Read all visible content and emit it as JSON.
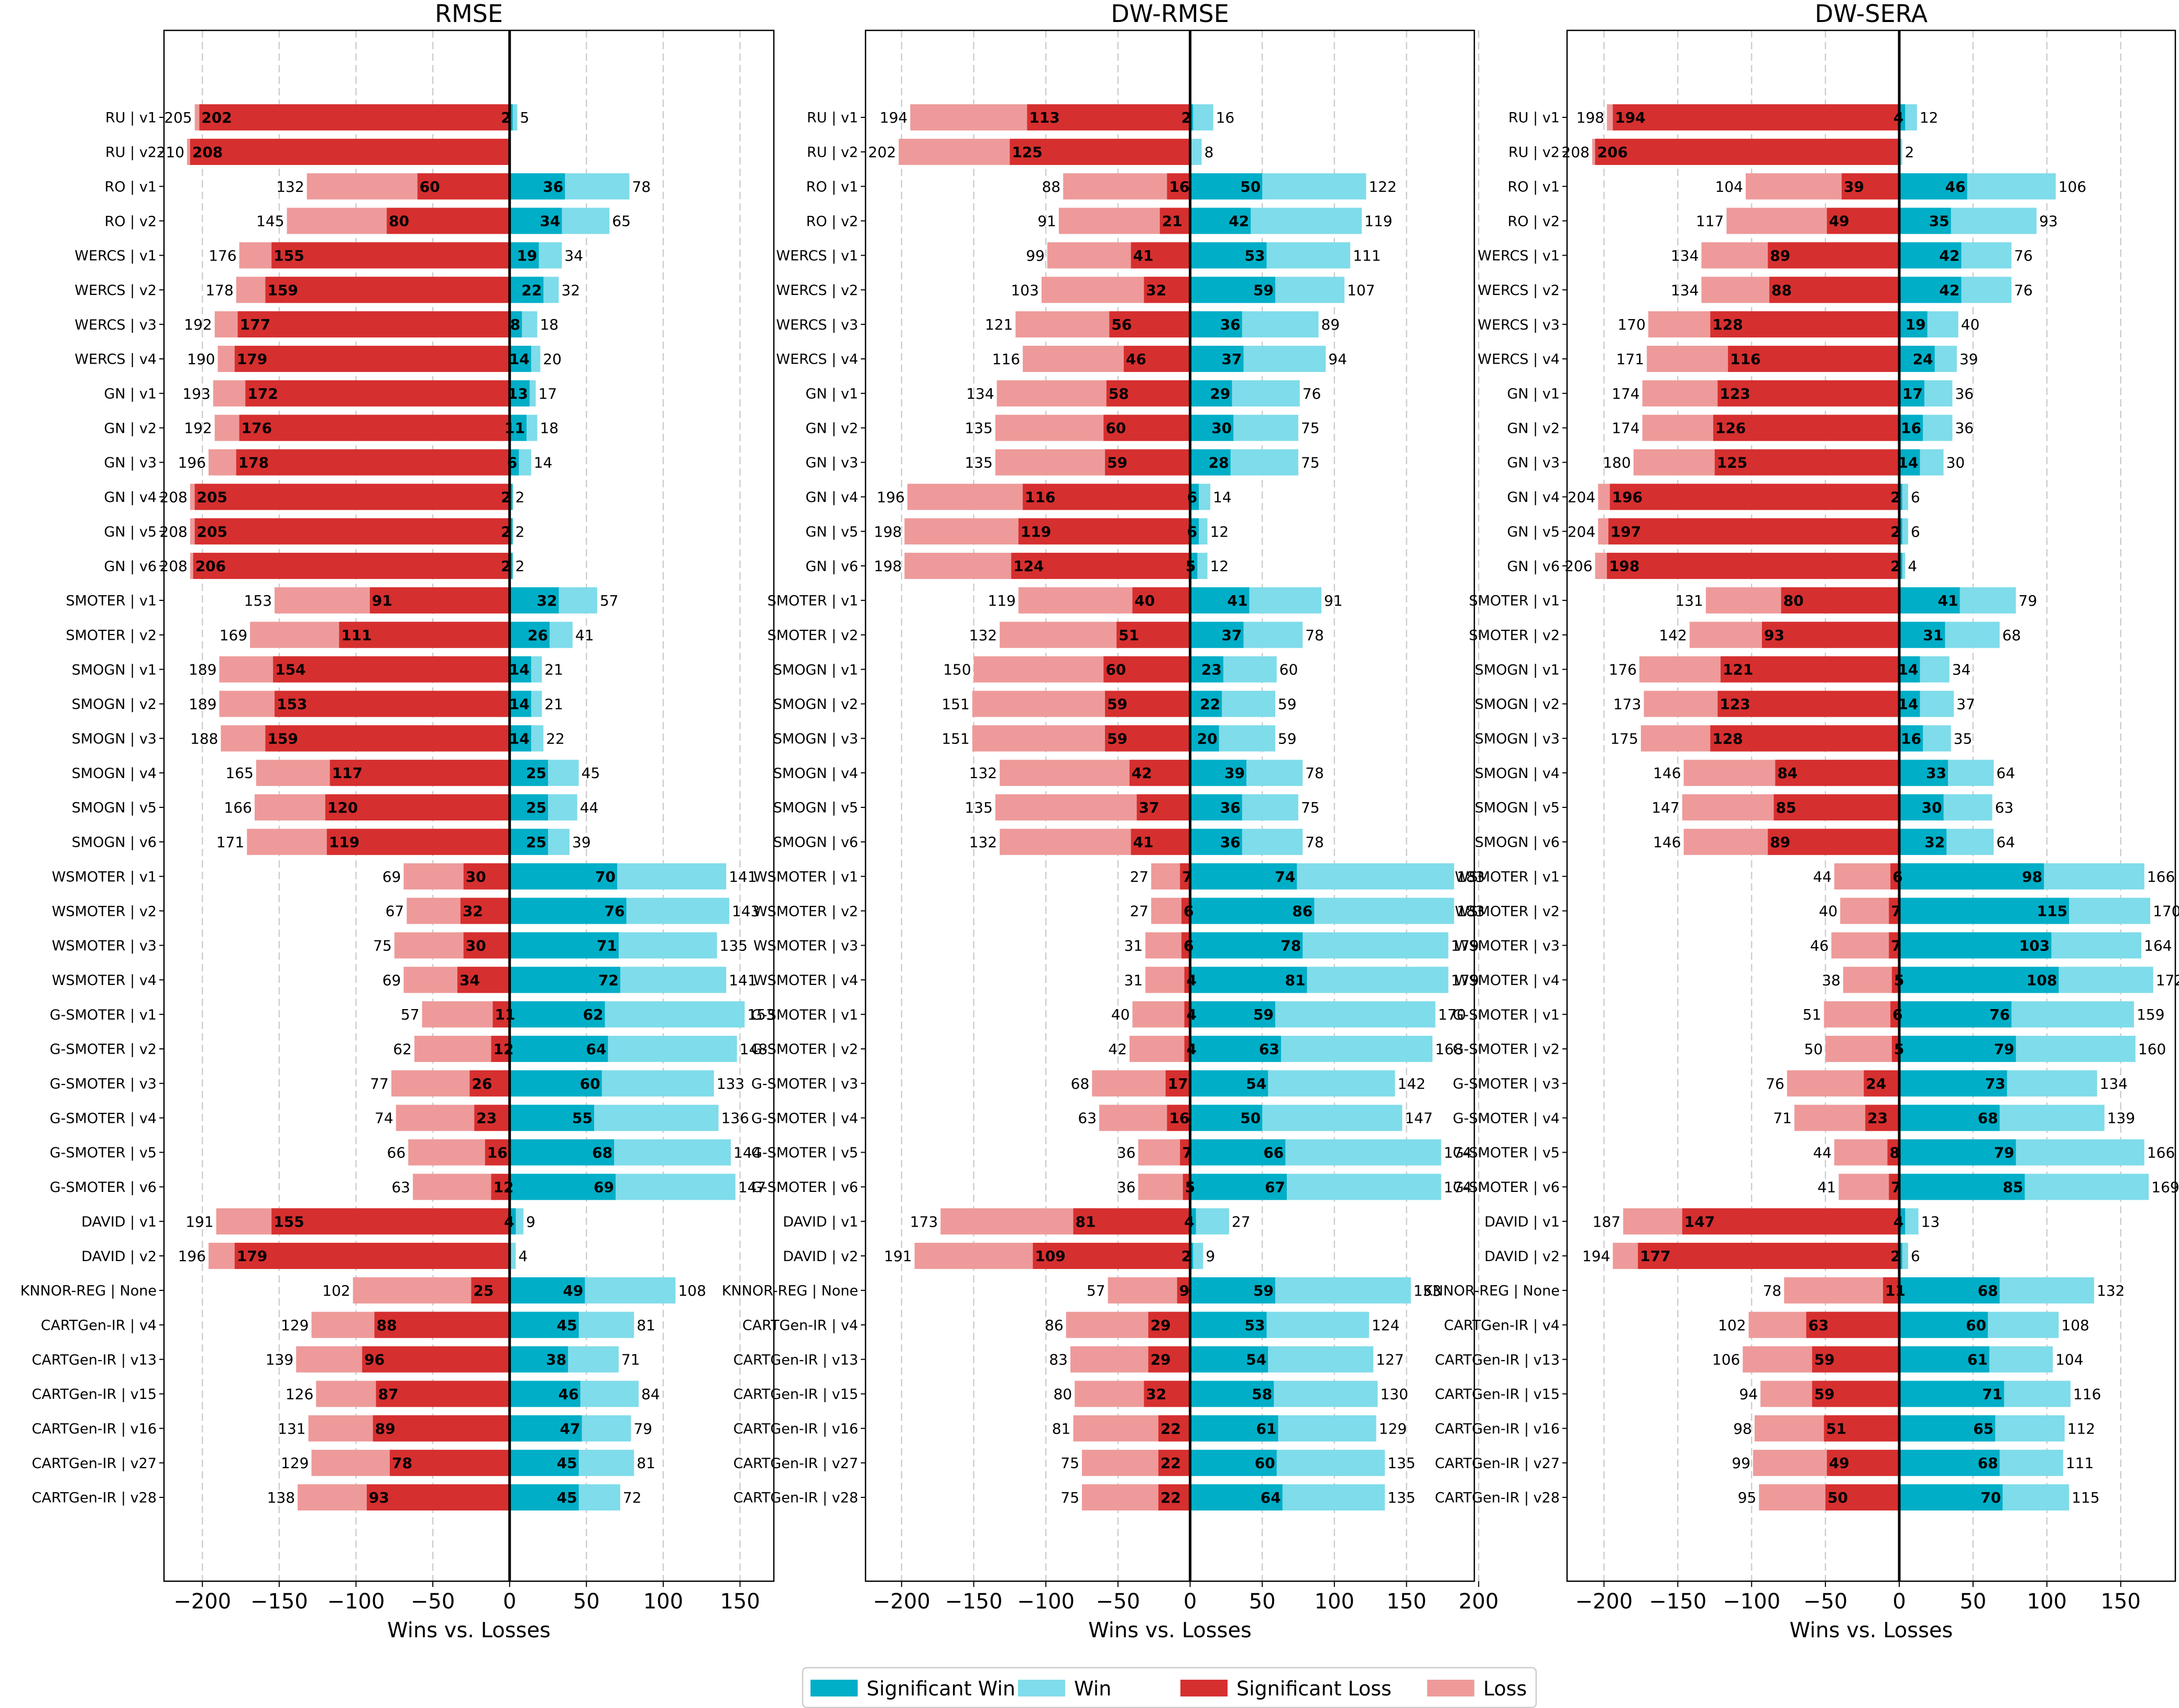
{
  "figure": {
    "legend": [
      {
        "key": "sig_win",
        "label": "Significant Win",
        "color": "#00aec7"
      },
      {
        "key": "win",
        "label": "Win",
        "color": "#7fdcea"
      },
      {
        "key": "sig_loss",
        "label": "Significant Loss",
        "color": "#d62f2f"
      },
      {
        "key": "loss",
        "label": "Loss",
        "color": "#ee9a9a"
      }
    ],
    "legend_placement": "bottom-center"
  },
  "chart_data": [
    {
      "type": "bar",
      "title": "RMSE",
      "xlabel": "Wins vs. Losses",
      "xlim": [
        -225,
        172
      ],
      "xticks": [
        -200,
        -150,
        -100,
        -50,
        0,
        50,
        100,
        150
      ],
      "xtick_labels": [
        "−200",
        "−150",
        "−100",
        "−50",
        "0",
        "50",
        "100",
        "150"
      ],
      "grid": "vertical dashed",
      "categories": [
        "RU | v1",
        "RU | v2",
        "RO | v1",
        "RO | v2",
        "WERCS | v1",
        "WERCS | v2",
        "WERCS | v3",
        "WERCS | v4",
        "GN | v1",
        "GN | v2",
        "GN | v3",
        "GN | v4",
        "GN | v5",
        "GN | v6",
        "SMOTER | v1",
        "SMOTER | v2",
        "SMOGN | v1",
        "SMOGN | v2",
        "SMOGN | v3",
        "SMOGN | v4",
        "SMOGN | v5",
        "SMOGN | v6",
        "WSMOTER | v1",
        "WSMOTER | v2",
        "WSMOTER | v3",
        "WSMOTER | v4",
        "G-SMOTER | v1",
        "G-SMOTER | v2",
        "G-SMOTER | v3",
        "G-SMOTER | v4",
        "G-SMOTER | v5",
        "G-SMOTER | v6",
        "DAVID | v1",
        "DAVID | v2",
        "KNNOR-REG | None",
        "CARTGen-IR | v4",
        "CARTGen-IR | v13",
        "CARTGen-IR | v15",
        "CARTGen-IR | v16",
        "CARTGen-IR | v27",
        "CARTGen-IR | v28"
      ],
      "loss": [
        205,
        210,
        132,
        145,
        176,
        178,
        192,
        190,
        193,
        192,
        196,
        208,
        208,
        208,
        153,
        169,
        189,
        189,
        188,
        165,
        166,
        171,
        69,
        67,
        75,
        69,
        57,
        62,
        77,
        74,
        66,
        63,
        191,
        196,
        102,
        129,
        139,
        126,
        131,
        129,
        138
      ],
      "sig_loss": [
        202,
        208,
        60,
        80,
        155,
        159,
        177,
        179,
        172,
        176,
        178,
        205,
        205,
        206,
        91,
        111,
        154,
        153,
        159,
        117,
        120,
        119,
        30,
        32,
        30,
        34,
        11,
        12,
        26,
        23,
        16,
        12,
        155,
        179,
        25,
        88,
        96,
        87,
        89,
        78,
        93
      ],
      "win": [
        5,
        0,
        78,
        65,
        34,
        32,
        18,
        20,
        17,
        18,
        14,
        2,
        2,
        2,
        57,
        41,
        21,
        21,
        22,
        45,
        44,
        39,
        141,
        143,
        135,
        141,
        153,
        148,
        133,
        136,
        144,
        147,
        9,
        4,
        108,
        81,
        71,
        84,
        79,
        81,
        72
      ],
      "sig_win": [
        2,
        0,
        36,
        34,
        19,
        22,
        8,
        14,
        13,
        11,
        6,
        2,
        2,
        2,
        32,
        26,
        14,
        14,
        14,
        25,
        25,
        25,
        70,
        76,
        71,
        72,
        62,
        64,
        60,
        55,
        68,
        69,
        4,
        0,
        49,
        45,
        38,
        46,
        47,
        45,
        45
      ]
    },
    {
      "type": "bar",
      "title": "DW-RMSE",
      "xlabel": "Wins vs. Losses",
      "xlim": [
        -225,
        197
      ],
      "xticks": [
        -200,
        -150,
        -100,
        -50,
        0,
        50,
        100,
        150,
        200
      ],
      "xtick_labels": [
        "−200",
        "−150",
        "−100",
        "−50",
        "0",
        "50",
        "100",
        "150",
        "200"
      ],
      "grid": "vertical dashed",
      "categories": [
        "RU | v1",
        "RU | v2",
        "RO | v1",
        "RO | v2",
        "WERCS | v1",
        "WERCS | v2",
        "WERCS | v3",
        "WERCS | v4",
        "GN | v1",
        "GN | v2",
        "GN | v3",
        "GN | v4",
        "GN | v5",
        "GN | v6",
        "SMOTER | v1",
        "SMOTER | v2",
        "SMOGN | v1",
        "SMOGN | v2",
        "SMOGN | v3",
        "SMOGN | v4",
        "SMOGN | v5",
        "SMOGN | v6",
        "WSMOTER | v1",
        "WSMOTER | v2",
        "WSMOTER | v3",
        "WSMOTER | v4",
        "G-SMOTER | v1",
        "G-SMOTER | v2",
        "G-SMOTER | v3",
        "G-SMOTER | v4",
        "G-SMOTER | v5",
        "G-SMOTER | v6",
        "DAVID | v1",
        "DAVID | v2",
        "KNNOR-REG | None",
        "CARTGen-IR | v4",
        "CARTGen-IR | v13",
        "CARTGen-IR | v15",
        "CARTGen-IR | v16",
        "CARTGen-IR | v27",
        "CARTGen-IR | v28"
      ],
      "loss": [
        194,
        202,
        88,
        91,
        99,
        103,
        121,
        116,
        134,
        135,
        135,
        196,
        198,
        198,
        119,
        132,
        150,
        151,
        151,
        132,
        135,
        132,
        27,
        27,
        31,
        31,
        40,
        42,
        68,
        63,
        36,
        36,
        173,
        191,
        57,
        86,
        83,
        80,
        81,
        75,
        75
      ],
      "sig_loss": [
        113,
        125,
        16,
        21,
        41,
        32,
        56,
        46,
        58,
        60,
        59,
        116,
        119,
        124,
        40,
        51,
        60,
        59,
        59,
        42,
        37,
        41,
        7,
        6,
        6,
        4,
        4,
        4,
        17,
        16,
        7,
        5,
        81,
        109,
        9,
        29,
        29,
        32,
        22,
        22,
        22
      ],
      "win": [
        16,
        8,
        122,
        119,
        111,
        107,
        89,
        94,
        76,
        75,
        75,
        14,
        12,
        12,
        91,
        78,
        60,
        59,
        59,
        78,
        75,
        78,
        183,
        183,
        179,
        179,
        170,
        168,
        142,
        147,
        174,
        174,
        27,
        9,
        153,
        124,
        127,
        130,
        129,
        135,
        135
      ],
      "sig_win": [
        2,
        0,
        50,
        42,
        53,
        59,
        36,
        37,
        29,
        30,
        28,
        6,
        6,
        5,
        41,
        37,
        23,
        22,
        20,
        39,
        36,
        36,
        74,
        86,
        78,
        81,
        59,
        63,
        54,
        50,
        66,
        67,
        4,
        2,
        59,
        53,
        54,
        58,
        61,
        60,
        64
      ]
    },
    {
      "type": "bar",
      "title": "DW-SERA",
      "xlabel": "Wins vs. Losses",
      "xlim": [
        -225,
        187
      ],
      "xticks": [
        -200,
        -150,
        -100,
        -50,
        0,
        50,
        100,
        150
      ],
      "xtick_labels": [
        "−200",
        "−150",
        "−100",
        "−50",
        "0",
        "50",
        "100",
        "150"
      ],
      "grid": "vertical dashed",
      "categories": [
        "RU | v1",
        "RU | v2",
        "RO | v1",
        "RO | v2",
        "WERCS | v1",
        "WERCS | v2",
        "WERCS | v3",
        "WERCS | v4",
        "GN | v1",
        "GN | v2",
        "GN | v3",
        "GN | v4",
        "GN | v5",
        "GN | v6",
        "SMOTER | v1",
        "SMOTER | v2",
        "SMOGN | v1",
        "SMOGN | v2",
        "SMOGN | v3",
        "SMOGN | v4",
        "SMOGN | v5",
        "SMOGN | v6",
        "WSMOTER | v1",
        "WSMOTER | v2",
        "WSMOTER | v3",
        "WSMOTER | v4",
        "G-SMOTER | v1",
        "G-SMOTER | v2",
        "G-SMOTER | v3",
        "G-SMOTER | v4",
        "G-SMOTER | v5",
        "G-SMOTER | v6",
        "DAVID | v1",
        "DAVID | v2",
        "KNNOR-REG | None",
        "CARTGen-IR | v4",
        "CARTGen-IR | v13",
        "CARTGen-IR | v15",
        "CARTGen-IR | v16",
        "CARTGen-IR | v27",
        "CARTGen-IR | v28"
      ],
      "loss": [
        198,
        208,
        104,
        117,
        134,
        134,
        170,
        171,
        174,
        174,
        180,
        204,
        204,
        206,
        131,
        142,
        176,
        173,
        175,
        146,
        147,
        146,
        44,
        40,
        46,
        38,
        51,
        50,
        76,
        71,
        44,
        41,
        187,
        194,
        78,
        102,
        106,
        94,
        98,
        99,
        95
      ],
      "sig_loss": [
        194,
        206,
        39,
        49,
        89,
        88,
        128,
        116,
        123,
        126,
        125,
        196,
        197,
        198,
        80,
        93,
        121,
        123,
        128,
        84,
        85,
        89,
        6,
        7,
        7,
        5,
        6,
        5,
        24,
        23,
        8,
        7,
        147,
        177,
        11,
        63,
        59,
        59,
        51,
        49,
        50
      ],
      "win": [
        12,
        2,
        106,
        93,
        76,
        76,
        40,
        39,
        36,
        36,
        30,
        6,
        6,
        4,
        79,
        68,
        34,
        37,
        35,
        64,
        63,
        64,
        166,
        170,
        164,
        172,
        159,
        160,
        134,
        139,
        166,
        169,
        13,
        6,
        132,
        108,
        104,
        116,
        112,
        111,
        115
      ],
      "sig_win": [
        4,
        0,
        46,
        35,
        42,
        42,
        19,
        24,
        17,
        16,
        14,
        2,
        2,
        2,
        41,
        31,
        14,
        14,
        16,
        33,
        30,
        32,
        98,
        115,
        103,
        108,
        76,
        79,
        73,
        68,
        79,
        85,
        4,
        2,
        68,
        60,
        61,
        71,
        65,
        68,
        70
      ]
    }
  ]
}
